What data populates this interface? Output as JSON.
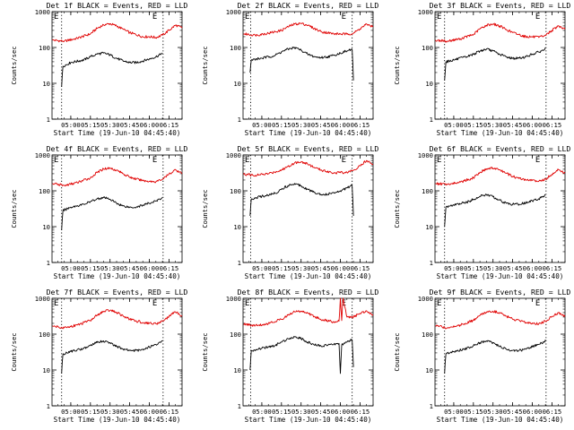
{
  "figure": {
    "ylabel": "Counts/sec",
    "xlabel": "Start Time (19-Jun-10 04:45:40)"
  },
  "colors": {
    "events": "#000000",
    "lld": "#e00000",
    "axis": "#000000",
    "background": "#ffffff"
  },
  "chart_data": [
    {
      "type": "line",
      "title": "Det 1f BLACK = Events, RED = LLD",
      "xlabel": "Start Time (19-Jun-10 04:45:40)",
      "ylabel": "Counts/sec",
      "yscale": "log",
      "ylim": [
        1,
        1000
      ],
      "yticks": [
        1,
        10,
        100,
        1000
      ],
      "xticks": [
        "05:00",
        "05:15",
        "05:30",
        "05:45",
        "06:00",
        "06:15"
      ],
      "xlim": [
        "04:45:40",
        "06:25:00"
      ],
      "marks": [
        "E",
        "E"
      ],
      "vlines": [
        "04:53:00",
        "06:10:30"
      ],
      "series": [
        {
          "color": "#000000",
          "x": [
            "04:53",
            "04:54",
            "05:00",
            "05:10",
            "05:15",
            "05:20",
            "05:25",
            "05:30",
            "05:35",
            "05:40",
            "05:45",
            "05:50",
            "05:55",
            "06:00",
            "06:05",
            "06:09",
            "06:10"
          ],
          "values": [
            8,
            30,
            38,
            45,
            55,
            65,
            70,
            62,
            50,
            42,
            38,
            38,
            42,
            48,
            55,
            65,
            70
          ]
        },
        {
          "color": "#e00000",
          "x": [
            "04:46",
            "04:55",
            "05:05",
            "05:15",
            "05:20",
            "05:25",
            "05:30",
            "05:35",
            "05:40",
            "05:45",
            "05:55",
            "06:00",
            "06:05",
            "06:10",
            "06:15",
            "06:20",
            "06:25"
          ],
          "values": [
            160,
            150,
            180,
            240,
            340,
            430,
            460,
            400,
            320,
            260,
            200,
            200,
            190,
            220,
            300,
            420,
            350
          ]
        }
      ]
    },
    {
      "type": "line",
      "title": "Det 2f BLACK = Events, RED = LLD",
      "xlabel": "Start Time (19-Jun-10 04:45:40)",
      "ylabel": "Counts/sec",
      "yscale": "log",
      "ylim": [
        1,
        1000
      ],
      "yticks": [
        1,
        10,
        100,
        1000
      ],
      "xticks": [
        "05:00",
        "05:15",
        "05:30",
        "05:45",
        "06:00",
        "06:15"
      ],
      "xlim": [
        "04:45:40",
        "06:25:00"
      ],
      "marks": [
        "E",
        "E"
      ],
      "vlines": [
        "04:51:30",
        "06:09:00"
      ],
      "series": [
        {
          "color": "#000000",
          "x": [
            "04:51",
            "04:52",
            "05:00",
            "05:10",
            "05:15",
            "05:20",
            "05:25",
            "05:30",
            "05:35",
            "05:40",
            "05:45",
            "05:50",
            "05:55",
            "06:00",
            "06:05",
            "06:09",
            "06:10"
          ],
          "values": [
            20,
            45,
            50,
            60,
            75,
            90,
            100,
            85,
            65,
            55,
            52,
            55,
            60,
            70,
            80,
            90,
            12
          ]
        },
        {
          "color": "#e00000",
          "x": [
            "04:46",
            "04:55",
            "05:05",
            "05:15",
            "05:20",
            "05:25",
            "05:30",
            "05:35",
            "05:40",
            "05:45",
            "05:55",
            "06:00",
            "06:05",
            "06:10",
            "06:15",
            "06:20",
            "06:25"
          ],
          "values": [
            240,
            220,
            250,
            300,
            380,
            450,
            470,
            420,
            340,
            280,
            240,
            240,
            235,
            250,
            330,
            450,
            380
          ]
        }
      ]
    },
    {
      "type": "line",
      "title": "Det 3f BLACK = Events, RED = LLD",
      "xlabel": "Start Time (19-Jun-10 04:45:40)",
      "ylabel": "Counts/sec",
      "yscale": "log",
      "ylim": [
        1,
        1000
      ],
      "yticks": [
        1,
        10,
        100,
        1000
      ],
      "xticks": [
        "05:00",
        "05:15",
        "05:30",
        "05:45",
        "06:00",
        "06:15"
      ],
      "xlim": [
        "04:45:40",
        "06:25:00"
      ],
      "marks": [
        "E",
        "E"
      ],
      "vlines": [
        "04:53:00",
        "06:10:30"
      ],
      "series": [
        {
          "color": "#000000",
          "x": [
            "04:53",
            "04:54",
            "05:00",
            "05:10",
            "05:15",
            "05:20",
            "05:25",
            "05:30",
            "05:35",
            "05:40",
            "05:45",
            "05:50",
            "05:55",
            "06:00",
            "06:05",
            "06:09",
            "06:10"
          ],
          "values": [
            12,
            40,
            45,
            55,
            65,
            80,
            90,
            80,
            65,
            55,
            50,
            50,
            55,
            65,
            75,
            85,
            100
          ]
        },
        {
          "color": "#e00000",
          "x": [
            "04:46",
            "04:55",
            "05:05",
            "05:15",
            "05:20",
            "05:25",
            "05:30",
            "05:35",
            "05:40",
            "05:45",
            "05:55",
            "06:00",
            "06:05",
            "06:10",
            "06:15",
            "06:20",
            "06:25"
          ],
          "values": [
            160,
            150,
            175,
            230,
            330,
            420,
            450,
            400,
            320,
            260,
            200,
            200,
            190,
            220,
            300,
            400,
            320
          ]
        }
      ]
    },
    {
      "type": "line",
      "title": "Det 4f BLACK = Events, RED = LLD",
      "xlabel": "Start Time (19-Jun-10 04:45:40)",
      "ylabel": "Counts/sec",
      "yscale": "log",
      "ylim": [
        1,
        1000
      ],
      "yticks": [
        1,
        10,
        100,
        1000
      ],
      "xticks": [
        "05:00",
        "05:15",
        "05:30",
        "05:45",
        "06:00",
        "06:15"
      ],
      "xlim": [
        "04:45:40",
        "06:25:00"
      ],
      "marks": [
        "E",
        "E"
      ],
      "vlines": [
        "04:53:00",
        "06:10:30"
      ],
      "series": [
        {
          "color": "#000000",
          "x": [
            "04:53",
            "04:54",
            "05:00",
            "05:10",
            "05:15",
            "05:20",
            "05:25",
            "05:30",
            "05:35",
            "05:40",
            "05:45",
            "05:50",
            "05:55",
            "06:00",
            "06:05",
            "06:09",
            "06:10"
          ],
          "values": [
            8,
            28,
            35,
            42,
            50,
            60,
            65,
            58,
            45,
            38,
            35,
            35,
            40,
            45,
            52,
            60,
            65
          ]
        },
        {
          "color": "#e00000",
          "x": [
            "04:46",
            "04:55",
            "05:05",
            "05:15",
            "05:20",
            "05:25",
            "05:30",
            "05:35",
            "05:40",
            "05:45",
            "05:55",
            "06:00",
            "06:05",
            "06:10",
            "06:15",
            "06:20",
            "06:25"
          ],
          "values": [
            160,
            140,
            170,
            230,
            320,
            410,
            430,
            380,
            300,
            240,
            190,
            185,
            180,
            210,
            290,
            390,
            300
          ]
        }
      ]
    },
    {
      "type": "line",
      "title": "Det 5f BLACK = Events, RED = LLD",
      "xlabel": "Start Time (19-Jun-10 04:45:40)",
      "ylabel": "Counts/sec",
      "yscale": "log",
      "ylim": [
        1,
        1000
      ],
      "yticks": [
        1,
        10,
        100,
        1000
      ],
      "xticks": [
        "05:00",
        "05:15",
        "05:30",
        "05:45",
        "06:00",
        "06:15"
      ],
      "xlim": [
        "04:45:40",
        "06:25:00"
      ],
      "marks": [
        "E",
        "E"
      ],
      "vlines": [
        "04:51:30",
        "06:09:00"
      ],
      "series": [
        {
          "color": "#000000",
          "x": [
            "04:51",
            "04:52",
            "05:00",
            "05:10",
            "05:15",
            "05:20",
            "05:25",
            "05:30",
            "05:35",
            "05:40",
            "05:45",
            "05:50",
            "05:55",
            "06:00",
            "06:05",
            "06:09",
            "06:10"
          ],
          "values": [
            20,
            60,
            70,
            85,
            110,
            140,
            160,
            140,
            110,
            90,
            80,
            80,
            90,
            100,
            120,
            140,
            20
          ]
        },
        {
          "color": "#e00000",
          "x": [
            "04:46",
            "04:55",
            "05:05",
            "05:15",
            "05:20",
            "05:25",
            "05:30",
            "05:35",
            "05:40",
            "05:45",
            "05:55",
            "06:00",
            "06:05",
            "06:10",
            "06:15",
            "06:20",
            "06:25"
          ],
          "values": [
            290,
            270,
            300,
            380,
            480,
            600,
            640,
            560,
            450,
            380,
            320,
            320,
            330,
            380,
            500,
            700,
            550
          ]
        }
      ]
    },
    {
      "type": "line",
      "title": "Det 6f BLACK = Events, RED = LLD",
      "xlabel": "Start Time (19-Jun-10 04:45:40)",
      "ylabel": "Counts/sec",
      "yscale": "log",
      "ylim": [
        1,
        1000
      ],
      "yticks": [
        1,
        10,
        100,
        1000
      ],
      "xticks": [
        "05:00",
        "05:15",
        "05:30",
        "05:45",
        "06:00",
        "06:15"
      ],
      "xlim": [
        "04:45:40",
        "06:25:00"
      ],
      "marks": [
        "E",
        "E"
      ],
      "vlines": [
        "04:53:00",
        "06:10:30"
      ],
      "series": [
        {
          "color": "#000000",
          "x": [
            "04:53",
            "04:54",
            "05:00",
            "05:10",
            "05:15",
            "05:20",
            "05:25",
            "05:30",
            "05:35",
            "05:40",
            "05:45",
            "05:50",
            "05:55",
            "06:00",
            "06:05",
            "06:09",
            "06:10"
          ],
          "values": [
            10,
            35,
            40,
            48,
            58,
            70,
            78,
            68,
            55,
            45,
            42,
            42,
            46,
            52,
            60,
            68,
            80
          ]
        },
        {
          "color": "#e00000",
          "x": [
            "04:46",
            "04:55",
            "05:05",
            "05:15",
            "05:20",
            "05:25",
            "05:30",
            "05:35",
            "05:40",
            "05:45",
            "05:55",
            "06:00",
            "06:05",
            "06:10",
            "06:15",
            "06:20",
            "06:25"
          ],
          "values": [
            160,
            150,
            175,
            230,
            330,
            410,
            430,
            390,
            310,
            250,
            200,
            195,
            185,
            210,
            290,
            390,
            310
          ]
        }
      ]
    },
    {
      "type": "line",
      "title": "Det 7f BLACK = Events, RED = LLD",
      "xlabel": "Start Time (19-Jun-10 04:45:40)",
      "ylabel": "Counts/sec",
      "yscale": "log",
      "ylim": [
        1,
        1000
      ],
      "yticks": [
        1,
        10,
        100,
        1000
      ],
      "xticks": [
        "05:00",
        "05:15",
        "05:30",
        "05:45",
        "06:00",
        "06:15"
      ],
      "xlim": [
        "04:45:40",
        "06:25:00"
      ],
      "marks": [
        "E",
        "E"
      ],
      "vlines": [
        "04:53:00",
        "06:10:30"
      ],
      "series": [
        {
          "color": "#000000",
          "x": [
            "04:53",
            "04:54",
            "05:00",
            "05:10",
            "05:15",
            "05:20",
            "05:25",
            "05:30",
            "05:35",
            "05:40",
            "05:45",
            "05:50",
            "05:55",
            "06:00",
            "06:05",
            "06:09",
            "06:10"
          ],
          "values": [
            8,
            28,
            33,
            40,
            48,
            58,
            65,
            58,
            45,
            38,
            35,
            35,
            38,
            44,
            52,
            60,
            65
          ]
        },
        {
          "color": "#e00000",
          "x": [
            "04:46",
            "04:55",
            "05:05",
            "05:15",
            "05:20",
            "05:25",
            "05:30",
            "05:35",
            "05:40",
            "05:45",
            "05:55",
            "06:00",
            "06:05",
            "06:10",
            "06:15",
            "06:20",
            "06:25"
          ],
          "values": [
            170,
            150,
            180,
            240,
            340,
            430,
            460,
            410,
            320,
            260,
            210,
            205,
            195,
            230,
            310,
            420,
            330
          ]
        }
      ]
    },
    {
      "type": "line",
      "title": "Det 8f BLACK = Events, RED = LLD",
      "xlabel": "Start Time (19-Jun-10 04:45:40)",
      "ylabel": "Counts/sec",
      "yscale": "log",
      "ylim": [
        1,
        1000
      ],
      "yticks": [
        1,
        10,
        100,
        1000
      ],
      "xticks": [
        "05:00",
        "05:15",
        "05:30",
        "05:45",
        "06:00",
        "06:15"
      ],
      "xlim": [
        "04:45:40",
        "06:25:00"
      ],
      "marks": [
        "E",
        "E"
      ],
      "vlines": [
        "04:51:30",
        "06:09:00"
      ],
      "series": [
        {
          "color": "#000000",
          "x": [
            "04:51",
            "04:52",
            "05:00",
            "05:10",
            "05:15",
            "05:20",
            "05:25",
            "05:30",
            "05:35",
            "05:40",
            "05:45",
            "05:50",
            "05:55",
            "05:59",
            "06:00",
            "06:01",
            "06:05",
            "06:09",
            "06:10"
          ],
          "values": [
            10,
            35,
            40,
            48,
            60,
            75,
            85,
            75,
            60,
            50,
            48,
            48,
            52,
            55,
            8,
            50,
            60,
            70,
            12
          ]
        },
        {
          "color": "#e00000",
          "x": [
            "04:46",
            "04:55",
            "05:05",
            "05:15",
            "05:20",
            "05:25",
            "05:30",
            "05:35",
            "05:40",
            "05:45",
            "05:55",
            "05:59",
            "06:00",
            "06:01",
            "06:02",
            "06:05",
            "06:10",
            "06:15",
            "06:20",
            "06:25"
          ],
          "values": [
            190,
            170,
            200,
            260,
            340,
            420,
            440,
            390,
            310,
            260,
            220,
            230,
            1000,
            240,
            1000,
            300,
            300,
            380,
            450,
            350
          ]
        }
      ]
    },
    {
      "type": "line",
      "title": "Det 9f BLACK = Events, RED = LLD",
      "xlabel": "Start Time (19-Jun-10 04:45:40)",
      "ylabel": "Counts/sec",
      "yscale": "log",
      "ylim": [
        1,
        1000
      ],
      "yticks": [
        1,
        10,
        100,
        1000
      ],
      "xticks": [
        "05:00",
        "05:15",
        "05:30",
        "05:45",
        "06:00",
        "06:15"
      ],
      "xlim": [
        "04:45:40",
        "06:25:00"
      ],
      "marks": [
        "E",
        "E"
      ],
      "vlines": [
        "04:53:00",
        "06:10:30"
      ],
      "series": [
        {
          "color": "#000000",
          "x": [
            "04:53",
            "04:54",
            "05:00",
            "05:10",
            "05:15",
            "05:20",
            "05:25",
            "05:30",
            "05:35",
            "05:40",
            "05:45",
            "05:50",
            "05:55",
            "06:00",
            "06:05",
            "06:09",
            "06:10"
          ],
          "values": [
            8,
            28,
            33,
            40,
            48,
            58,
            65,
            58,
            45,
            38,
            35,
            35,
            38,
            44,
            52,
            60,
            70
          ]
        },
        {
          "color": "#e00000",
          "x": [
            "04:46",
            "04:55",
            "05:05",
            "05:15",
            "05:20",
            "05:25",
            "05:30",
            "05:35",
            "05:40",
            "05:45",
            "05:55",
            "06:00",
            "06:05",
            "06:10",
            "06:15",
            "06:20",
            "06:25"
          ],
          "values": [
            170,
            150,
            180,
            240,
            330,
            420,
            440,
            400,
            320,
            260,
            210,
            205,
            195,
            230,
            310,
            400,
            310
          ]
        }
      ]
    }
  ]
}
